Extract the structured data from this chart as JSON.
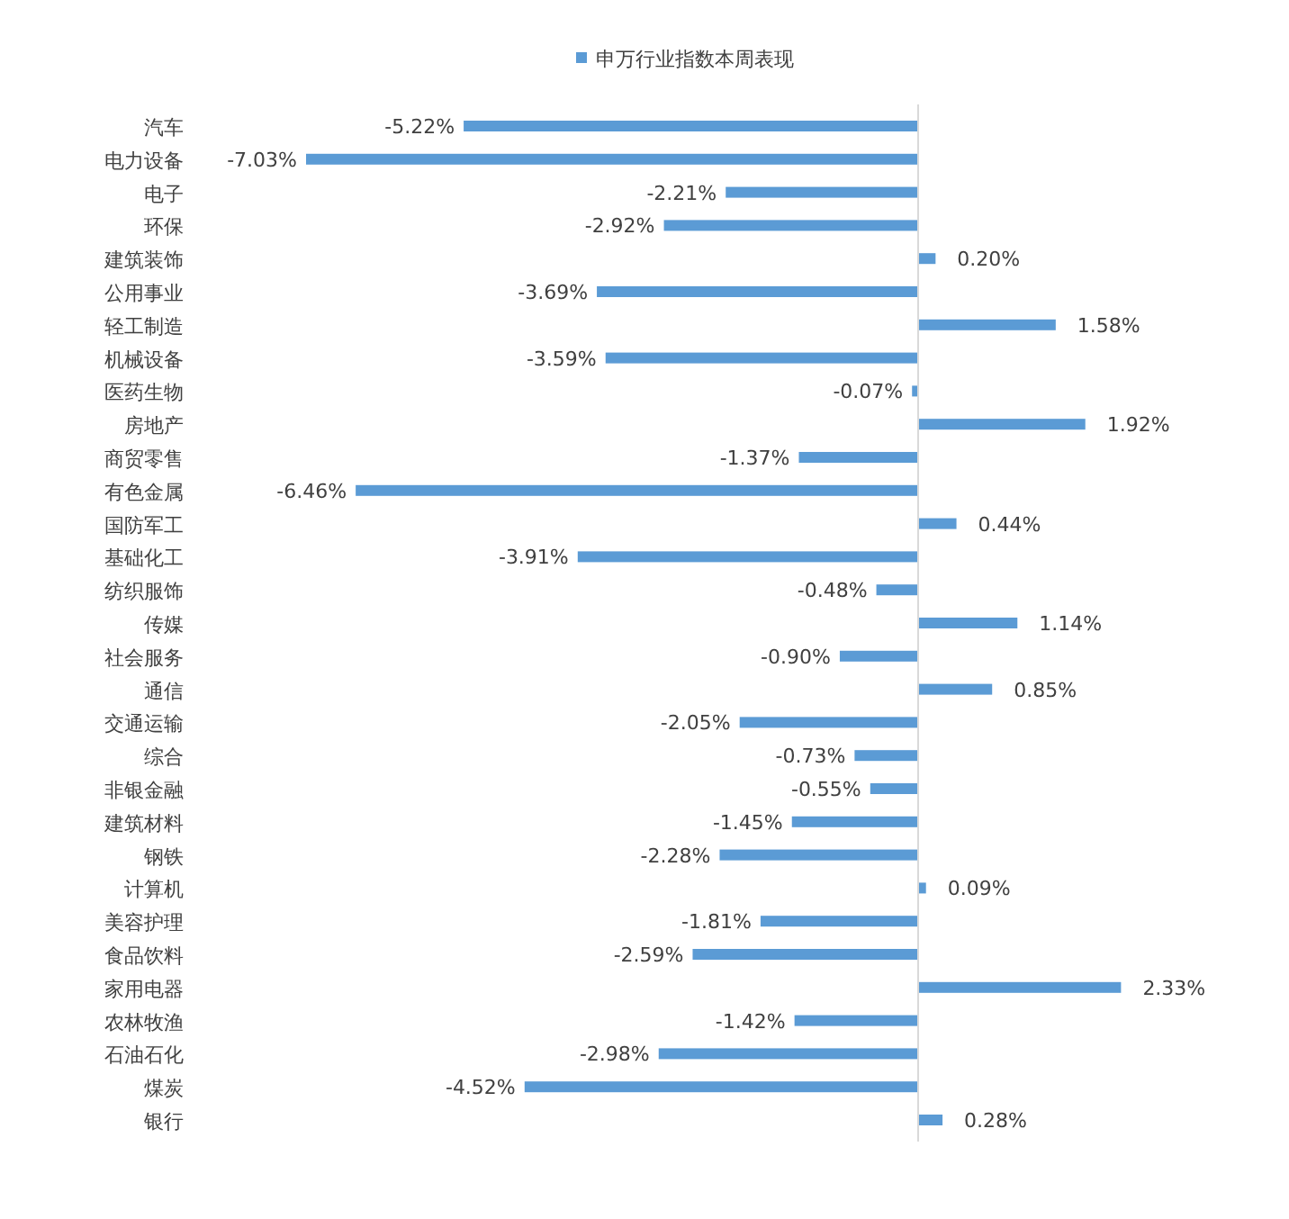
{
  "chart_data": {
    "type": "bar",
    "orientation": "horizontal",
    "legend": "top",
    "categories": [
      "汽车",
      "电力设备",
      "电子",
      "环保",
      "建筑装饰",
      "公用事业",
      "轻工制造",
      "机械设备",
      "医药生物",
      "房地产",
      "商贸零售",
      "有色金属",
      "国防军工",
      "基础化工",
      "纺织服饰",
      "传媒",
      "社会服务",
      "通信",
      "交通运输",
      "综合",
      "非银金融",
      "建筑材料",
      "钢铁",
      "计算机",
      "美容护理",
      "食品饮料",
      "家用电器",
      "农林牧渔",
      "石油石化",
      "煤炭",
      "银行"
    ],
    "series": [
      {
        "name": "申万行业指数本周表现",
        "color": "#5b9bd5",
        "values": [
          -5.22,
          -7.03,
          -2.21,
          -2.92,
          0.2,
          -3.69,
          1.58,
          -3.59,
          -0.07,
          1.92,
          -1.37,
          -6.46,
          0.44,
          -3.91,
          -0.48,
          1.14,
          -0.9,
          0.85,
          -2.05,
          -0.73,
          -0.55,
          -1.45,
          -2.28,
          0.09,
          -1.81,
          -2.59,
          2.33,
          -1.42,
          -2.98,
          -4.52,
          0.28
        ],
        "value_labels": [
          "-5.22%",
          "-7.03%",
          "-2.21%",
          "-2.92%",
          "0.20%",
          "-3.69%",
          "1.58%",
          "-3.59%",
          "-0.07%",
          "1.92%",
          "-1.37%",
          "-6.46%",
          "0.44%",
          "-3.91%",
          "-0.48%",
          "1.14%",
          "-0.90%",
          "0.85%",
          "-2.05%",
          "-0.73%",
          "-0.55%",
          "-1.45%",
          "-2.28%",
          "0.09%",
          "-1.81%",
          "-2.59%",
          "2.33%",
          "-1.42%",
          "-2.98%",
          "-4.52%",
          "0.28%"
        ]
      }
    ]
  }
}
